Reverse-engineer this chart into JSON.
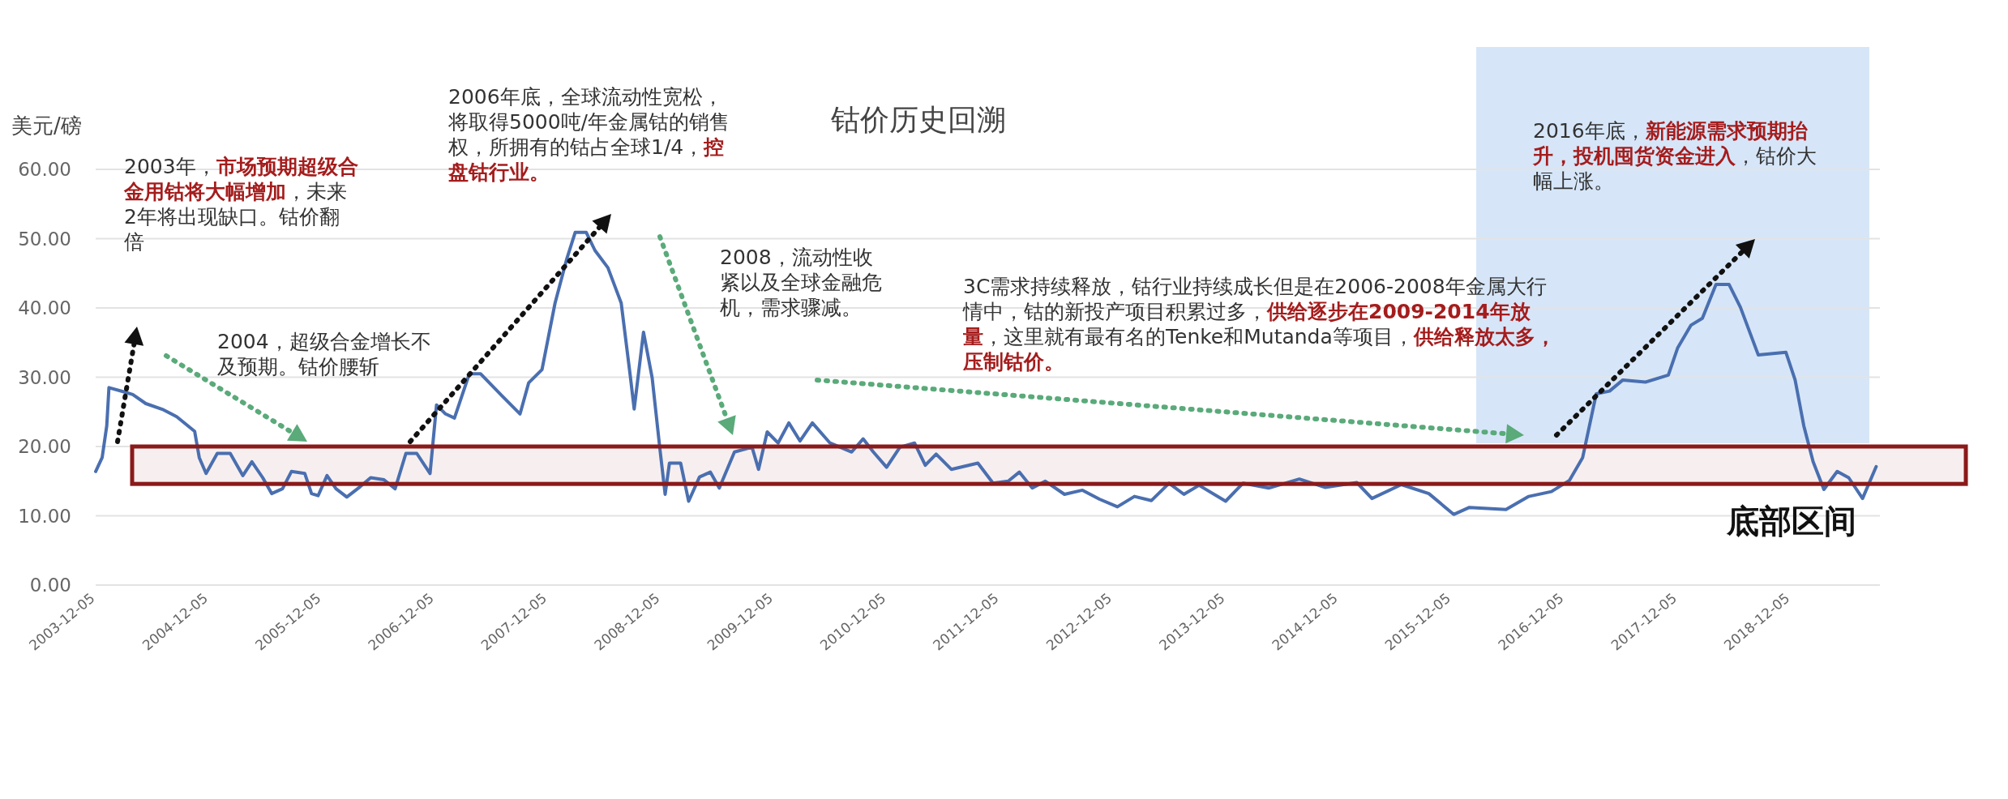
{
  "chart_data": {
    "type": "line",
    "title": "钴价历史回溯",
    "ylabel": "美元/磅",
    "x": [
      "2003-12-05",
      "2003-12-26",
      "2004-01-10",
      "2004-01-17",
      "2004-03-05",
      "2004-04-03",
      "2004-05-15",
      "2004-07-11",
      "2004-08-23",
      "2004-10-20",
      "2004-11-04",
      "2004-11-26",
      "2005-01-01",
      "2005-02-12",
      "2005-03-25",
      "2005-04-23",
      "2005-05-28",
      "2005-06-26",
      "2005-07-31",
      "2005-08-29",
      "2005-10-11",
      "2005-11-02",
      "2005-11-23",
      "2005-12-22",
      "2006-01-20",
      "2006-02-24",
      "2006-04-08",
      "2006-05-12",
      "2006-06-24",
      "2006-07-30",
      "2006-09-03",
      "2006-10-08",
      "2006-11-20",
      "2006-12-11",
      "2007-01-09",
      "2007-02-07",
      "2007-03-27",
      "2007-05-02",
      "2007-07-11",
      "2007-09-07",
      "2007-10-05",
      "2007-11-17",
      "2007-12-29",
      "2008-02-05",
      "2008-03-03",
      "2008-04-08",
      "2008-05-06",
      "2008-06-17",
      "2008-07-30",
      "2008-08-29",
      "2008-09-10",
      "2008-10-10",
      "2008-11-07",
      "2008-12-02",
      "2008-12-19",
      "2009-01-02",
      "2009-02-07",
      "2009-03-05",
      "2009-04-09",
      "2009-05-14",
      "2009-06-12",
      "2009-07-31",
      "2009-09-26",
      "2009-10-17",
      "2009-11-14",
      "2009-12-19",
      "2010-01-23",
      "2010-02-28",
      "2010-04-09",
      "2010-06-05",
      "2010-08-14",
      "2010-09-20",
      "2010-10-23",
      "2010-12-05",
      "2011-01-17",
      "2011-03-05",
      "2011-04-09",
      "2011-05-14",
      "2011-07-02",
      "2011-09-26",
      "2011-11-14",
      "2012-01-02",
      "2012-02-07",
      "2012-03-20",
      "2012-05-01",
      "2012-07-02",
      "2012-08-29",
      "2012-10-23",
      "2012-12-20",
      "2013-02-13",
      "2013-04-09",
      "2013-06-05",
      "2013-07-23",
      "2013-09-10",
      "2013-12-05",
      "2014-01-30",
      "2014-04-23",
      "2014-07-31",
      "2014-10-22",
      "2015-02-02",
      "2015-03-23",
      "2015-06-26",
      "2015-09-23",
      "2015-12-12",
      "2016-02-01",
      "2016-05-29",
      "2016-08-11",
      "2016-10-23",
      "2016-12-20",
      "2017-02-01",
      "2017-03-17",
      "2017-04-29",
      "2017-06-11",
      "2017-08-23",
      "2017-11-05",
      "2017-12-05",
      "2018-01-17",
      "2018-02-23",
      "2018-04-08",
      "2018-05-20",
      "2018-06-26",
      "2018-08-23",
      "2018-11-20",
      "2018-12-20",
      "2019-01-17",
      "2019-02-16",
      "2019-03-23",
      "2019-05-05",
      "2019-06-11",
      "2019-07-26",
      "2019-09-08"
    ],
    "series": [
      {
        "color": "#4a6fb0",
        "values": [
          16.4,
          18.4,
          23,
          28.5,
          27.9,
          27.5,
          26.2,
          25.3,
          24.3,
          22.2,
          18.4,
          16.1,
          19,
          19,
          15.8,
          17.8,
          15.5,
          13.2,
          13.9,
          16.4,
          16.1,
          13.2,
          12.9,
          15.8,
          13.9,
          12.7,
          14.2,
          15.5,
          15.2,
          13.9,
          19,
          19,
          16.1,
          26,
          24.7,
          24.1,
          30.5,
          30.5,
          27.3,
          24.7,
          29.2,
          31.1,
          40.7,
          47.1,
          50.9,
          50.9,
          48.3,
          45.8,
          40.7,
          29.9,
          25.4,
          36.5,
          29.9,
          19.7,
          13.1,
          17.6,
          17.6,
          12.1,
          15.6,
          16.3,
          14,
          19.2,
          19.9,
          16.7,
          22.1,
          20.5,
          23.4,
          20.8,
          23.4,
          20.5,
          19.2,
          21.1,
          19.2,
          17,
          19.9,
          20.5,
          17.3,
          18.9,
          16.7,
          17.6,
          14.7,
          15,
          16.3,
          14,
          15,
          13.1,
          13.7,
          12.4,
          11.3,
          12.8,
          12.2,
          14.7,
          13.1,
          14.4,
          12.1,
          14.7,
          14,
          15.3,
          14.1,
          14.8,
          12.5,
          14.5,
          13.2,
          10.2,
          11.2,
          10.9,
          12.8,
          13.5,
          15.1,
          18.4,
          27.6,
          28,
          29.6,
          29.3,
          30.3,
          34.2,
          37.5,
          38.5,
          43.4,
          43.4,
          40.1,
          33.2,
          33.6,
          29.6,
          23,
          17.8,
          13.8,
          16.4,
          15.5,
          12.5,
          17.1
        ]
      }
    ],
    "xlim": [
      "2003-12-05",
      "2019-09-20"
    ],
    "xticks": [
      "2003-12-05",
      "2004-12-05",
      "2005-12-05",
      "2006-12-05",
      "2007-12-05",
      "2008-12-05",
      "2009-12-05",
      "2010-12-05",
      "2011-12-05",
      "2012-12-05",
      "2013-12-05",
      "2014-12-05",
      "2015-12-05",
      "2016-12-05",
      "2017-12-05",
      "2018-12-05"
    ],
    "ylim": [
      0,
      60
    ],
    "yticks": [
      {
        "value": 0,
        "label": "0.00"
      },
      {
        "value": 10,
        "label": "10.00"
      },
      {
        "value": 20,
        "label": "20.00"
      },
      {
        "value": 30,
        "label": "30.00"
      },
      {
        "value": 40,
        "label": "40.00"
      },
      {
        "value": 50,
        "label": "50.00"
      },
      {
        "value": 60,
        "label": "60.00"
      }
    ],
    "grid": "y",
    "bands": [
      {
        "axis": "x",
        "from": "2016-02-23",
        "to": "2019-08-17",
        "color": "#d6e6f8"
      },
      {
        "axis": "y",
        "from": 14.6,
        "to": 20,
        "color": "#8b1a1a",
        "label": "底部区间"
      }
    ],
    "annotations": [
      "2003年，**市场预期超级合金用钴将大幅增加**，未来2年将出现缺口。钴价翻倍",
      "2004，超级合金增长不及预期。钴价腰斩",
      "2006年底，全球流动性宽松，将取得5000吨/年金属钴的销售权，所拥有的钴占全球1/4，**控盘钴行业。**",
      "2008，流动性收紧以及全球金融危机，需求骤减。",
      "3C需求持续释放，钴行业持续成长但是在2006-2008年金属大行情中，钴的新投产项目积累过多，**供给逐步在2009-2014年放量**，这里就有最有名的Tenke和Mutanda等项目，**供给释放太多，压制钴价。**",
      "2016年底，**新能源需求预期抬升，投机囤货资金进入**，钴价大幅上涨。"
    ]
  }
}
